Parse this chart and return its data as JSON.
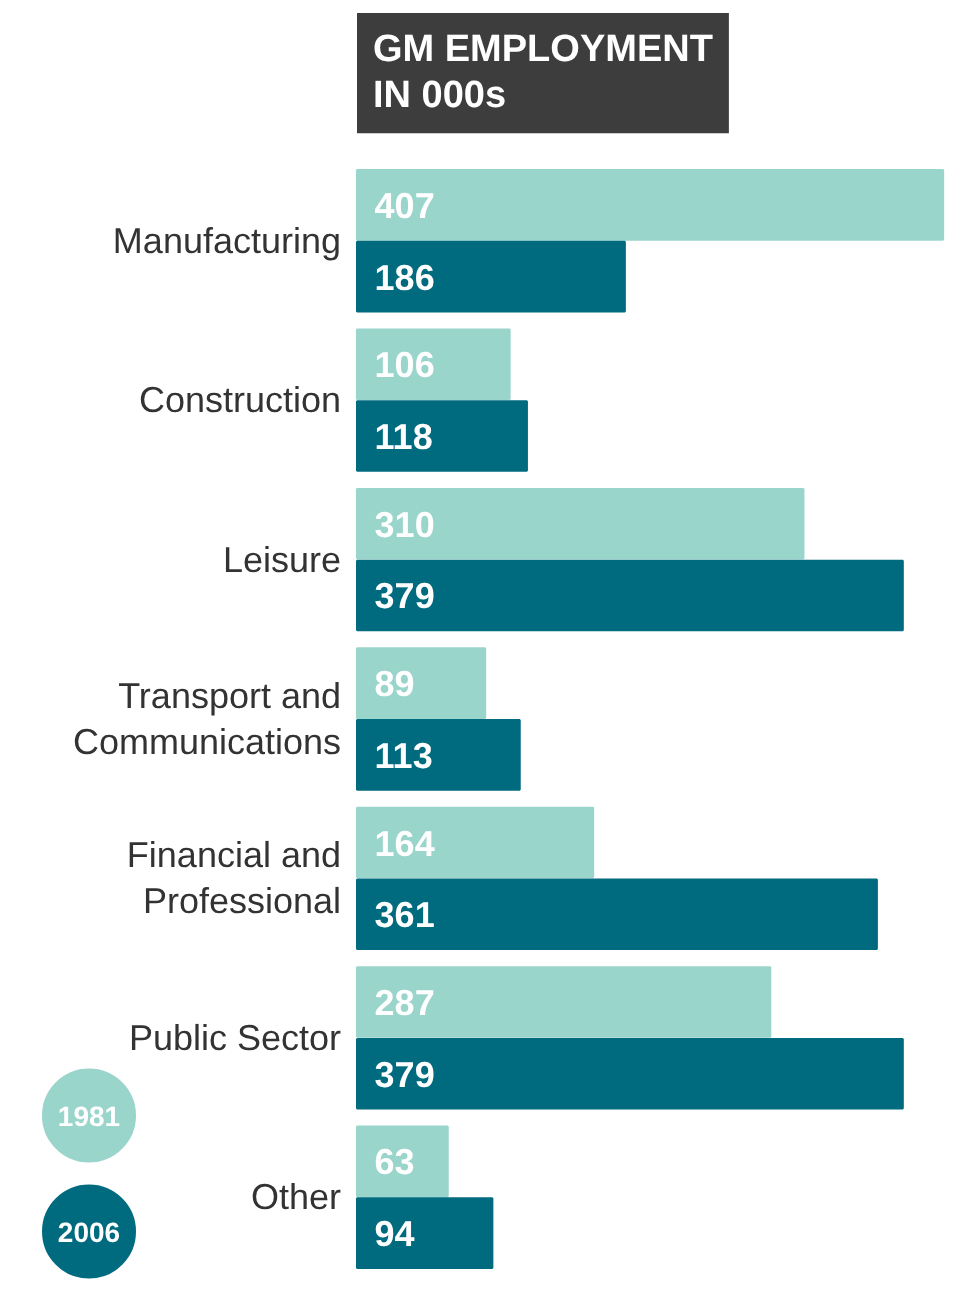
{
  "chart_data": {
    "type": "bar",
    "orientation": "horizontal",
    "title": "GM EMPLOYMENT\nIN 000s",
    "categories": [
      "Manufacturing",
      "Construction",
      "Leisure",
      "Transport and Communications",
      "Financial and Professional",
      "Public Sector",
      "Other"
    ],
    "series": [
      {
        "name": "1981",
        "color": "#9ad5cc",
        "values": [
          407,
          106,
          310,
          89,
          164,
          287,
          63
        ]
      },
      {
        "name": "2006",
        "color": "#006b7f",
        "values": [
          186,
          118,
          379,
          113,
          361,
          379,
          94
        ]
      }
    ],
    "data_labels": true,
    "legend": "bottom left",
    "grid": false
  }
}
